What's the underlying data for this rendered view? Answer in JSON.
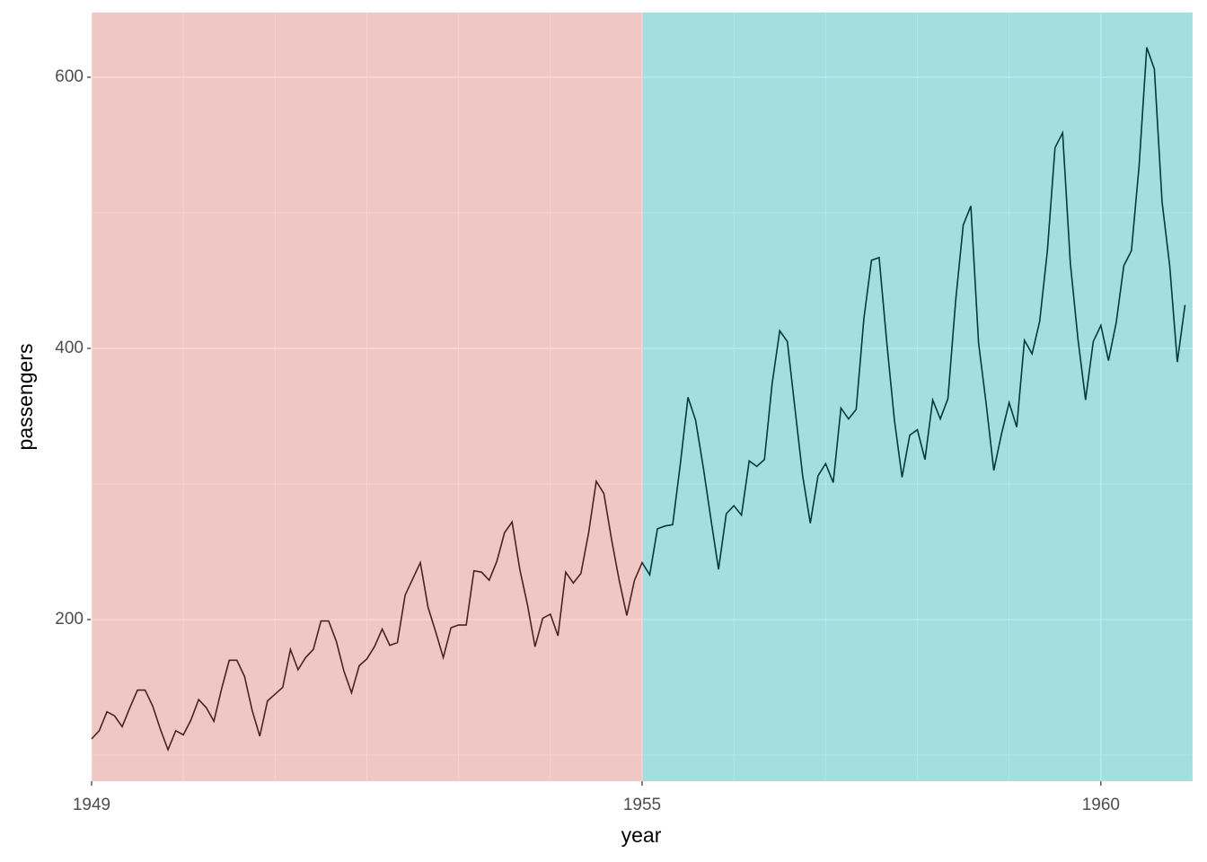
{
  "chart_data": {
    "type": "line",
    "x_label": "year",
    "y_label": "passengers",
    "xlim": [
      1949,
      1961
    ],
    "ylim": [
      80.8,
      647.7
    ],
    "xticks": [
      1949,
      1955,
      1960
    ],
    "yticks": [
      200,
      400,
      600
    ],
    "minor_xticks": [
      1950,
      1951,
      1952,
      1953,
      1954,
      1956,
      1957,
      1958,
      1959,
      1961
    ],
    "minor_yticks": [
      100,
      300,
      500
    ],
    "grid": true,
    "regions": [
      {
        "start": 1949,
        "end": 1955,
        "color": "#F8766D",
        "alpha": 0.3
      },
      {
        "start": 1955,
        "end": 1961,
        "color": "#00BFC4",
        "alpha": 0.3
      }
    ],
    "series": [
      {
        "color": "#000000",
        "x": [
          1949,
          1949.083,
          1949.167,
          1949.25,
          1949.333,
          1949.417,
          1949.5,
          1949.583,
          1949.667,
          1949.75,
          1949.833,
          1949.917,
          1950,
          1950.083,
          1950.167,
          1950.25,
          1950.333,
          1950.417,
          1950.5,
          1950.583,
          1950.667,
          1950.75,
          1950.833,
          1950.917,
          1951,
          1951.083,
          1951.167,
          1951.25,
          1951.333,
          1951.417,
          1951.5,
          1951.583,
          1951.667,
          1951.75,
          1951.833,
          1951.917,
          1952,
          1952.083,
          1952.167,
          1952.25,
          1952.333,
          1952.417,
          1952.5,
          1952.583,
          1952.667,
          1952.75,
          1952.833,
          1952.917,
          1953,
          1953.083,
          1953.167,
          1953.25,
          1953.333,
          1953.417,
          1953.5,
          1953.583,
          1953.667,
          1953.75,
          1953.833,
          1953.917,
          1954,
          1954.083,
          1954.167,
          1954.25,
          1954.333,
          1954.417,
          1954.5,
          1954.583,
          1954.667,
          1954.75,
          1954.833,
          1954.917,
          1955,
          1955.083,
          1955.167,
          1955.25,
          1955.333,
          1955.417,
          1955.5,
          1955.583,
          1955.667,
          1955.75,
          1955.833,
          1955.917,
          1956,
          1956.083,
          1956.167,
          1956.25,
          1956.333,
          1956.417,
          1956.5,
          1956.583,
          1956.667,
          1956.75,
          1956.833,
          1956.917,
          1957,
          1957.083,
          1957.167,
          1957.25,
          1957.333,
          1957.417,
          1957.5,
          1957.583,
          1957.667,
          1957.75,
          1957.833,
          1957.917,
          1958,
          1958.083,
          1958.167,
          1958.25,
          1958.333,
          1958.417,
          1958.5,
          1958.583,
          1958.667,
          1958.75,
          1958.833,
          1958.917,
          1959,
          1959.083,
          1959.167,
          1959.25,
          1959.333,
          1959.417,
          1959.5,
          1959.583,
          1959.667,
          1959.75,
          1959.833,
          1959.917,
          1960,
          1960.083,
          1960.167,
          1960.25,
          1960.333,
          1960.417,
          1960.5,
          1960.583,
          1960.667,
          1960.75,
          1960.833,
          1960.917
        ],
        "values": [
          112,
          118,
          132,
          129,
          121,
          135,
          148,
          148,
          136,
          119,
          104,
          118,
          115,
          126,
          141,
          135,
          125,
          149,
          170,
          170,
          158,
          133,
          114,
          140,
          145,
          150,
          178,
          163,
          172,
          178,
          199,
          199,
          184,
          162,
          146,
          166,
          171,
          180,
          193,
          181,
          183,
          218,
          230,
          242,
          209,
          191,
          172,
          194,
          196,
          196,
          236,
          235,
          229,
          243,
          264,
          272,
          237,
          211,
          180,
          201,
          204,
          188,
          235,
          227,
          234,
          264,
          302,
          293,
          259,
          229,
          203,
          229,
          242,
          233,
          267,
          269,
          270,
          315,
          364,
          347,
          312,
          274,
          237,
          278,
          284,
          277,
          317,
          313,
          318,
          374,
          413,
          405,
          355,
          306,
          271,
          306,
          315,
          301,
          356,
          348,
          355,
          422,
          465,
          467,
          404,
          347,
          305,
          336,
          340,
          318,
          362,
          348,
          363,
          435,
          491,
          505,
          404,
          359,
          310,
          337,
          360,
          342,
          406,
          396,
          420,
          472,
          548,
          559,
          463,
          407,
          362,
          405,
          417,
          391,
          419,
          461,
          472,
          535,
          622,
          606,
          508,
          461,
          390,
          432
        ]
      }
    ]
  }
}
